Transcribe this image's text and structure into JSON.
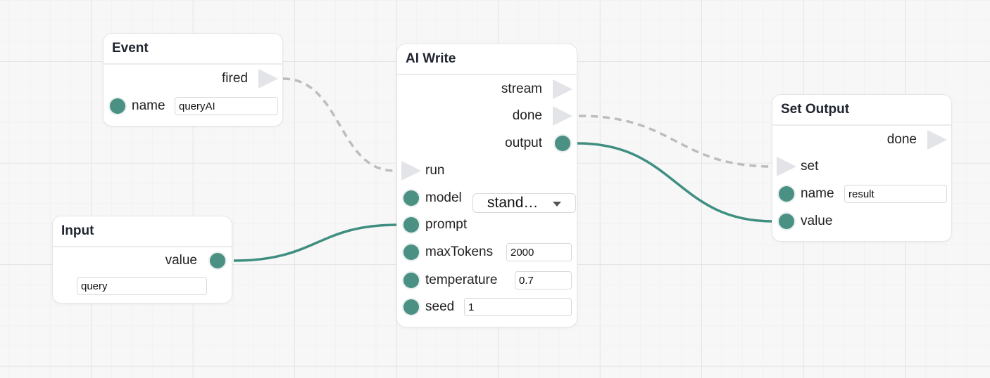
{
  "nodes": [
    {
      "title": "Event",
      "ports": [
        {
          "label": "fired"
        },
        {
          "label": "name",
          "input": "queryAI"
        }
      ]
    },
    {
      "title": "Input",
      "ports": [
        {
          "label": "value",
          "input": "query"
        }
      ]
    },
    {
      "title": "AI Write",
      "ports": [
        {
          "label": "stream"
        },
        {
          "label": "done"
        },
        {
          "label": "output"
        },
        {
          "label": "run"
        },
        {
          "label": "model",
          "input": "stand…"
        },
        {
          "label": "prompt"
        },
        {
          "label": "maxTokens",
          "input": "2000"
        },
        {
          "label": "temperature",
          "input": "0.7"
        },
        {
          "label": "seed",
          "input": "1"
        }
      ]
    },
    {
      "title": "Set Output",
      "ports": [
        {
          "label": "done"
        },
        {
          "label": "set"
        },
        {
          "label": "name",
          "input": "result"
        },
        {
          "label": "value"
        }
      ]
    }
  ]
}
